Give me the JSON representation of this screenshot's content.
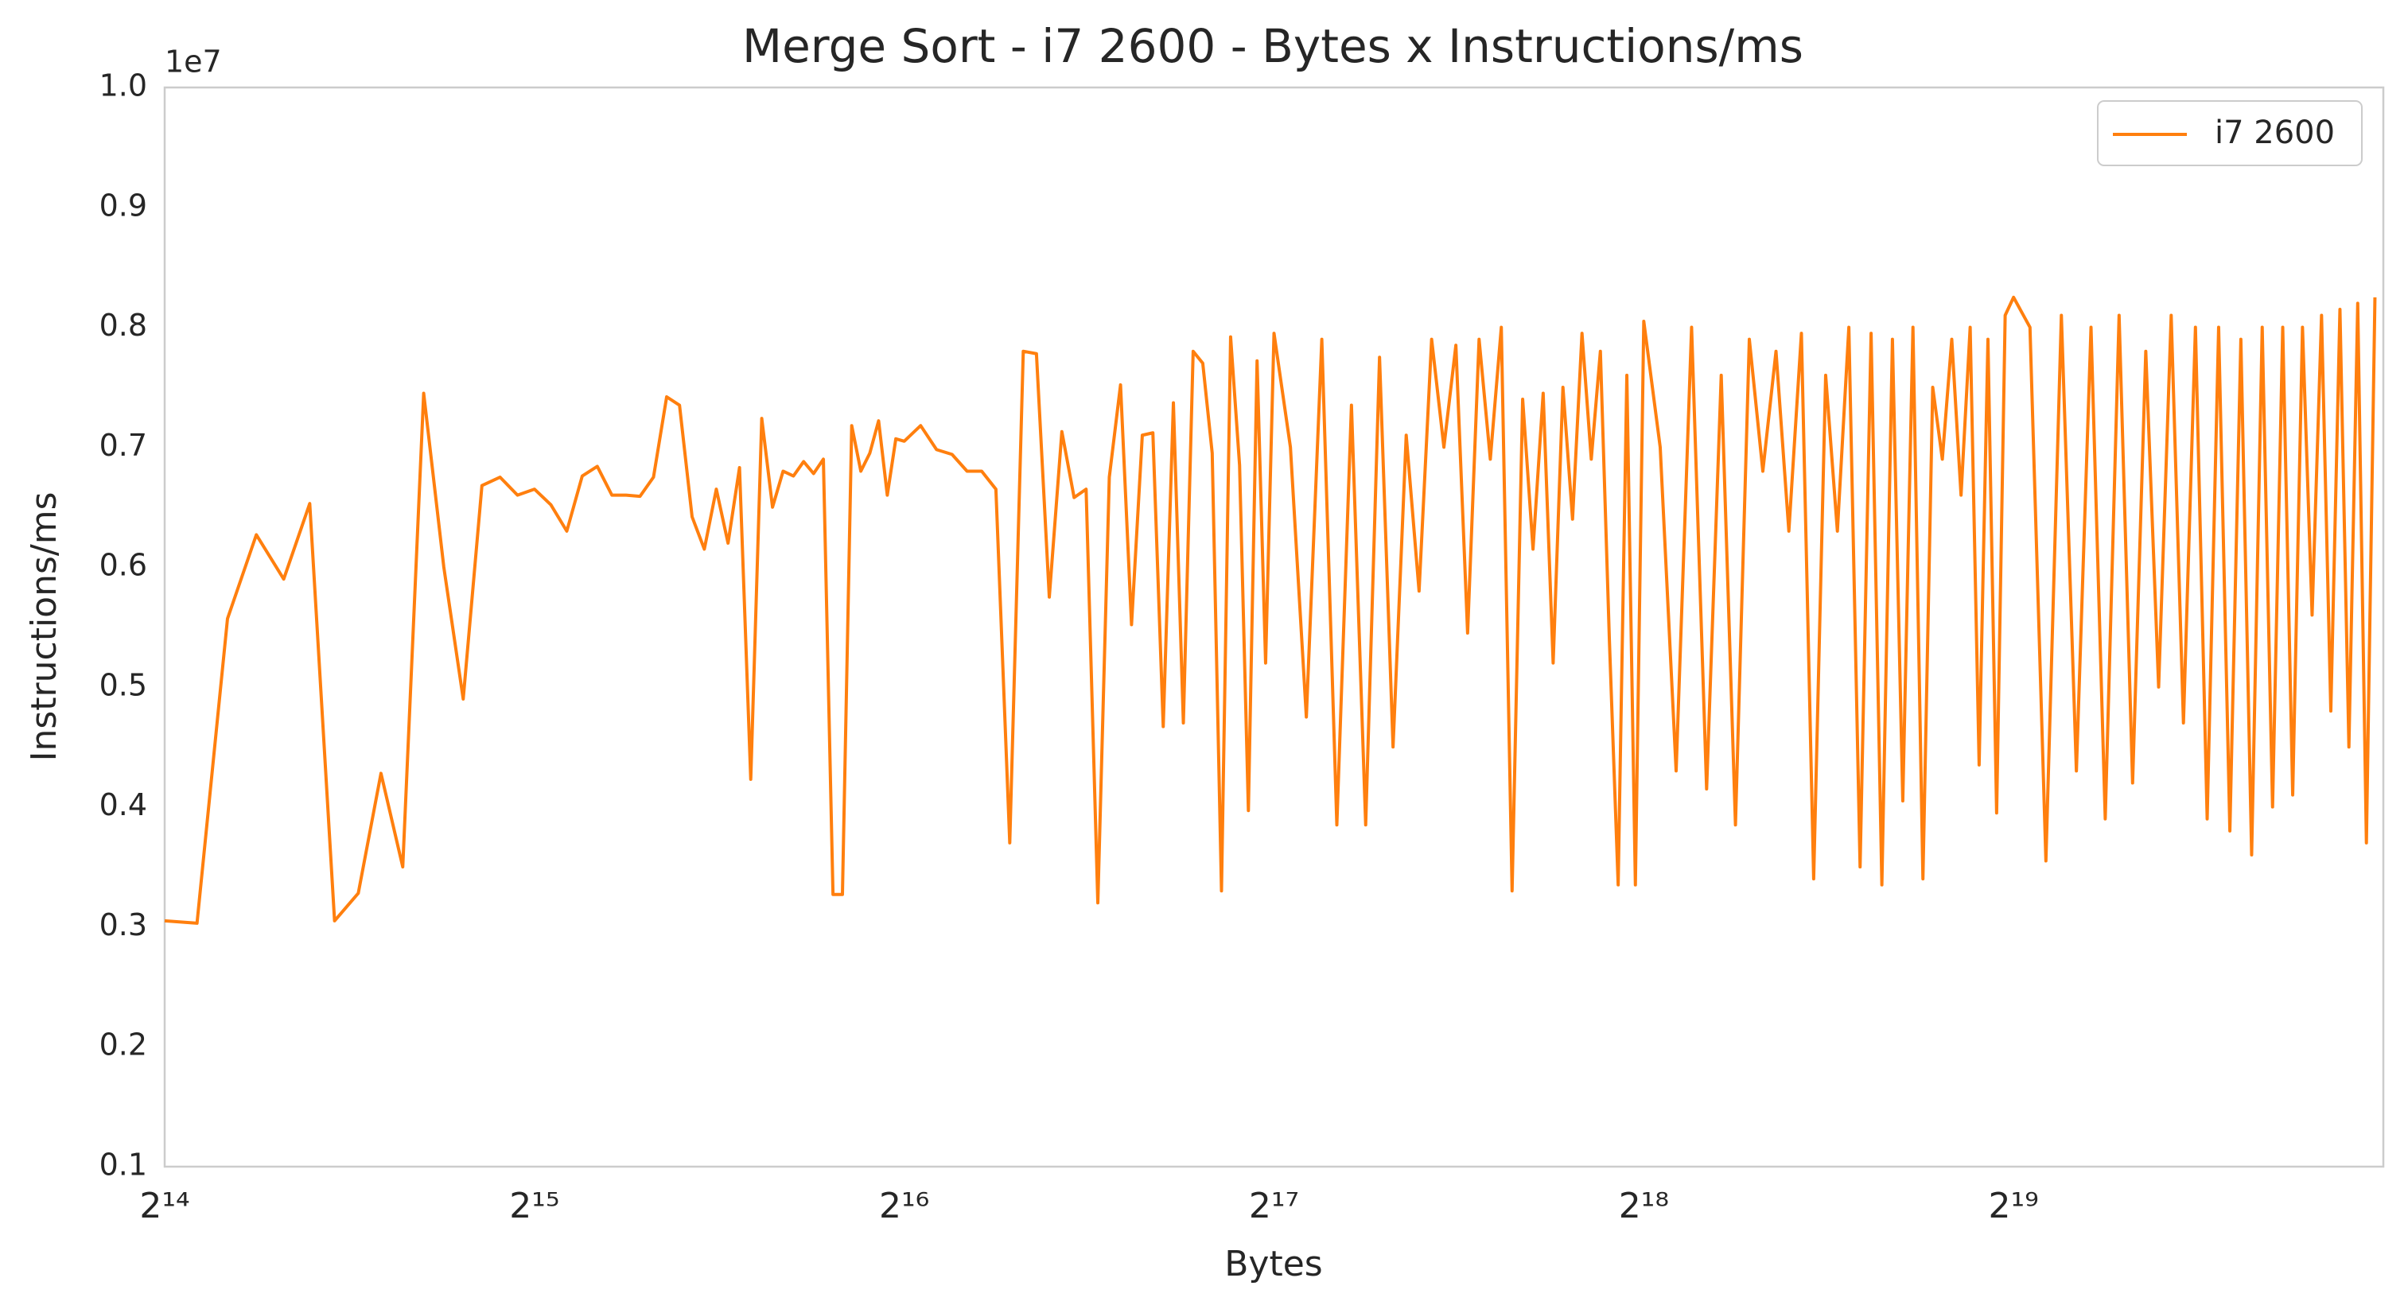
{
  "chart_data": {
    "type": "line",
    "title": "Merge Sort - i7 2600 - Bytes x Instructions/ms",
    "x_label": "Bytes",
    "y_label": "Instructions/ms",
    "y_offset_label": "1e7",
    "xscale": "log2",
    "grid": false,
    "legend": "upper right",
    "xlim": [
      16384,
      1048576
    ],
    "xticks": [
      {
        "value": 16384,
        "label": "2¹⁴"
      },
      {
        "value": 32768,
        "label": "2¹⁵"
      },
      {
        "value": 65536,
        "label": "2¹⁶"
      },
      {
        "value": 131072,
        "label": "2¹⁷"
      },
      {
        "value": 262144,
        "label": "2¹⁸"
      },
      {
        "value": 524288,
        "label": "2¹⁹"
      }
    ],
    "ylim": [
      0.1,
      1.0
    ],
    "yticks": [
      0.1,
      0.2,
      0.3,
      0.4,
      0.5,
      0.6,
      0.7,
      0.8,
      0.9,
      {
        "value": 1.0,
        "label": "1.0"
      }
    ],
    "x": [
      16384,
      17408,
      18432,
      19456,
      20480,
      21504,
      22528,
      23552,
      24576,
      25600,
      26624,
      27648,
      28672,
      29696,
      30720,
      31744,
      32768,
      33792,
      34816,
      35840,
      36864,
      37888,
      38912,
      39936,
      40960,
      41984,
      43008,
      44032,
      45056,
      46080,
      47104,
      48128,
      49152,
      50176,
      51200,
      52224,
      53248,
      54272,
      55296,
      56320,
      57344,
      58368,
      59392,
      60416,
      61440,
      62464,
      63488,
      64512,
      65536,
      67584,
      69632,
      71680,
      73728,
      75776,
      77824,
      79872,
      81920,
      83968,
      86016,
      88064,
      90112,
      92160,
      94208,
      96256,
      98304,
      100352,
      102400,
      104448,
      106496,
      108544,
      110592,
      112640,
      114688,
      116736,
      118784,
      120832,
      122880,
      124928,
      126976,
      129024,
      131072,
      135168,
      139264,
      143360,
      147456,
      151552,
      155648,
      159744,
      163840,
      167936,
      172032,
      176128,
      180224,
      184320,
      188416,
      192512,
      196608,
      200704,
      204800,
      208896,
      212992,
      217088,
      221184,
      225280,
      229376,
      233472,
      237568,
      241664,
      245760,
      249856,
      253952,
      258048,
      262144,
      270336,
      278528,
      286720,
      294912,
      303104,
      311296,
      319488,
      327680,
      335872,
      344064,
      352256,
      360448,
      368640,
      376832,
      385024,
      393216,
      401408,
      409600,
      417792,
      425984,
      434176,
      442368,
      450560,
      458752,
      466944,
      475136,
      483328,
      491520,
      499712,
      507904,
      516096,
      524288,
      540672,
      557056,
      573440,
      589824,
      606208,
      622592,
      638976,
      655360,
      671744,
      688128,
      704512,
      720896,
      737280,
      753664,
      770048,
      786432,
      802816,
      819200,
      835584,
      851968,
      868352,
      884736,
      901120,
      917504,
      933888,
      950272,
      966656,
      983040,
      999424,
      1015808,
      1032192
    ],
    "series": [
      {
        "name": "i7 2600",
        "color": "#ff7f0e",
        "values": [
          0.305,
          0.303,
          0.557,
          0.627,
          0.59,
          0.653,
          0.305,
          0.328,
          0.428,
          0.35,
          0.745,
          0.6,
          0.49,
          0.668,
          0.675,
          0.66,
          0.665,
          0.652,
          0.63,
          0.676,
          0.684,
          0.66,
          0.66,
          0.659,
          0.675,
          0.742,
          0.735,
          0.642,
          0.615,
          0.665,
          0.62,
          0.683,
          0.423,
          0.724,
          0.65,
          0.68,
          0.676,
          0.688,
          0.678,
          0.69,
          0.327,
          0.327,
          0.718,
          0.68,
          0.695,
          0.722,
          0.66,
          0.707,
          0.705,
          0.718,
          0.698,
          0.694,
          0.68,
          0.68,
          0.665,
          0.37,
          0.78,
          0.778,
          0.575,
          0.713,
          0.658,
          0.665,
          0.32,
          0.675,
          0.752,
          0.552,
          0.71,
          0.712,
          0.467,
          0.737,
          0.47,
          0.78,
          0.77,
          0.695,
          0.33,
          0.792,
          0.685,
          0.397,
          0.772,
          0.52,
          0.795,
          0.7,
          0.475,
          0.79,
          0.385,
          0.735,
          0.385,
          0.775,
          0.45,
          0.71,
          0.58,
          0.79,
          0.7,
          0.785,
          0.545,
          0.79,
          0.69,
          0.8,
          0.33,
          0.74,
          0.615,
          0.745,
          0.52,
          0.75,
          0.64,
          0.795,
          0.69,
          0.78,
          0.54,
          0.335,
          0.76,
          0.335,
          0.805,
          0.7,
          0.43,
          0.8,
          0.415,
          0.76,
          0.385,
          0.79,
          0.68,
          0.78,
          0.63,
          0.795,
          0.34,
          0.76,
          0.63,
          0.8,
          0.35,
          0.795,
          0.335,
          0.79,
          0.405,
          0.8,
          0.34,
          0.75,
          0.69,
          0.79,
          0.66,
          0.8,
          0.435,
          0.79,
          0.395,
          0.81,
          0.825,
          0.8,
          0.355,
          0.81,
          0.43,
          0.8,
          0.39,
          0.81,
          0.42,
          0.78,
          0.5,
          0.81,
          0.47,
          0.8,
          0.39,
          0.8,
          0.38,
          0.79,
          0.36,
          0.8,
          0.4,
          0.8,
          0.41,
          0.8,
          0.56,
          0.81,
          0.48,
          0.815,
          0.45,
          0.82,
          0.37,
          0.825
        ]
      }
    ]
  }
}
